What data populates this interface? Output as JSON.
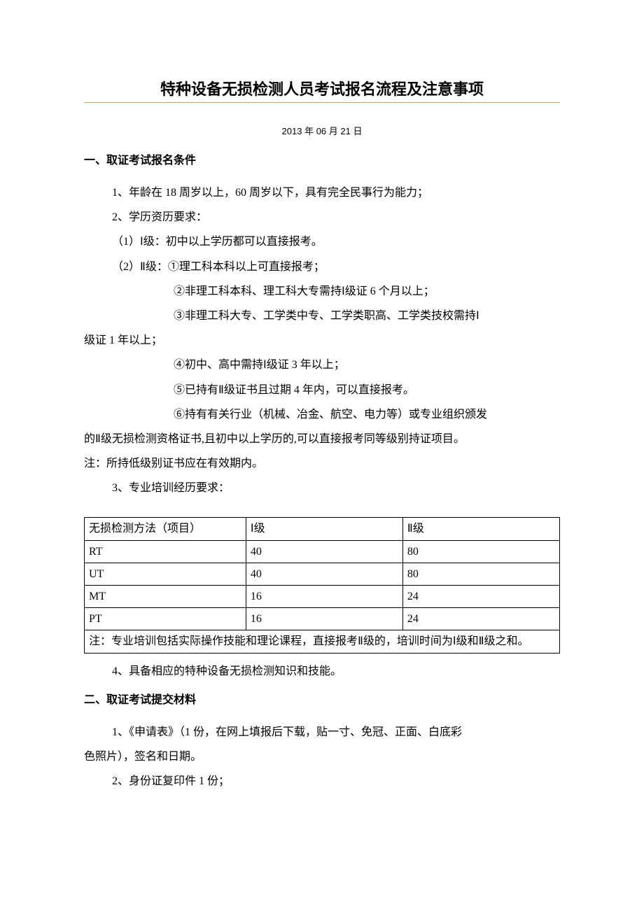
{
  "title": "特种设备无损检测人员考试报名流程及注意事项",
  "date": "2013 年 06 月 21 日",
  "section1": {
    "heading": "一、取证考试报名条件",
    "p1": "1、年龄在 18 周岁以上，60 周岁以下，具有完全民事行为能力；",
    "p2": "2、学历资历要求：",
    "p3": "（1）Ⅰ级：初中以上学历都可以直接报考。",
    "p4": "（2）Ⅱ级：①理工科本科以上可直接报考；",
    "p5": "②非理工科本科、理工科大专需持Ⅰ级证 6 个月以上；",
    "p6": "③非理工科大专、工学类中专、工学类职高、工学类技校需持Ⅰ",
    "p6b": "级证 1 年以上；",
    "p7": "④初中、高中需持Ⅰ级证 3 年以上；",
    "p8": "⑤已持有Ⅱ级证书且过期 4 年内，可以直接报考。",
    "p9": "⑥持有有关行业（机械、冶金、航空、电力等）或专业组织颁发",
    "p9b": "的Ⅱ级无损检测资格证书,且初中以上学历的,可以直接报考同等级别持证项目。",
    "p10": "注：所持低级别证书应在有效期内。",
    "p11": "3、专业培训经历要求：",
    "p12": "4、具备相应的特种设备无损检测知识和技能。"
  },
  "table": {
    "columns": [
      "无损检测方法（项目）",
      "Ⅰ级",
      "Ⅱ级"
    ],
    "rows": [
      [
        "RT",
        "40",
        "80"
      ],
      [
        "UT",
        "40",
        "80"
      ],
      [
        "MT",
        "16",
        "24"
      ],
      [
        "PT",
        "16",
        "24"
      ]
    ],
    "note": "注：专业培训包括实际操作技能和理论课程，直接报考Ⅱ级的，培训时间为Ⅰ级和Ⅱ级之和。",
    "col_widths": [
      "34%",
      "33%",
      "33%"
    ]
  },
  "section2": {
    "heading": "二、取证考试提交材料",
    "p1": "1、《申请表》（1 份，在网上填报后下载，贴一寸、免冠、正面、白底彩",
    "p1b": "色照片），签名和日期。",
    "p2": "2、身份证复印件 1 份；"
  },
  "colors": {
    "underline": "#c0a050",
    "text": "#000000",
    "background": "#ffffff",
    "table_border": "#000000"
  },
  "fonts": {
    "title_size": 22,
    "body_size": 16,
    "date_size": 13
  }
}
